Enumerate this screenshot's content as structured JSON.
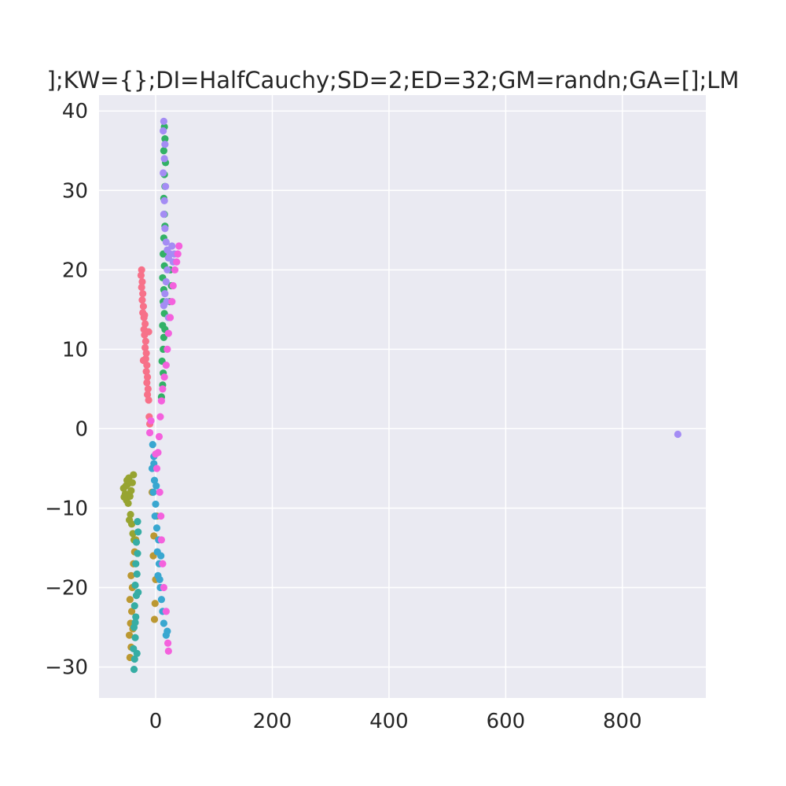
{
  "chart_data": {
    "type": "scatter",
    "title": "];KW={};DI=HalfCauchy;SD=2;ED=32;GM=randn;GA=[];LM",
    "xlabel": "",
    "ylabel": "",
    "xlim": [
      -97,
      943
    ],
    "ylim": [
      -33.9,
      42.0
    ],
    "xticks": [
      0,
      200,
      400,
      600,
      800
    ],
    "yticks": [
      -30,
      -20,
      -10,
      0,
      10,
      20,
      30,
      40
    ],
    "xtick_labels": [
      "0",
      "200",
      "400",
      "600",
      "800"
    ],
    "ytick_labels": [
      "−30",
      "−20",
      "−10",
      "0",
      "10",
      "20",
      "30",
      "40"
    ],
    "grid": true,
    "legend": "none",
    "background": "#eaeaf2",
    "series": [
      {
        "color": "#f77189",
        "points": [
          [
            -24,
            20
          ],
          [
            -25,
            19.3
          ],
          [
            -23,
            18.5
          ],
          [
            -24,
            17.8
          ],
          [
            -22,
            17
          ],
          [
            -23,
            16.2
          ],
          [
            -21,
            15.4
          ],
          [
            -22,
            14.6
          ],
          [
            -20,
            14
          ],
          [
            -18,
            13.2
          ],
          [
            -20,
            12.5
          ],
          [
            -19,
            11.8
          ],
          [
            -17,
            11
          ],
          [
            -18,
            10.2
          ],
          [
            -16,
            9.5
          ],
          [
            -17,
            8.8
          ],
          [
            -15,
            8
          ],
          [
            -16,
            7.2
          ],
          [
            -14,
            6.5
          ],
          [
            -15,
            5.8
          ],
          [
            -13,
            5
          ],
          [
            -14,
            4.3
          ],
          [
            -12,
            3.6
          ],
          [
            -11,
            1.5
          ],
          [
            -10,
            0.6
          ],
          [
            -12,
            12.2
          ],
          [
            -19,
            14.3
          ],
          [
            -21,
            8.6
          ]
        ]
      },
      {
        "color": "#bb9832",
        "points": [
          [
            -44,
            -28.8
          ],
          [
            -42,
            -27.5
          ],
          [
            -45,
            -26
          ],
          [
            -43,
            -24.5
          ],
          [
            -41,
            -23
          ],
          [
            -44,
            -21.5
          ],
          [
            -40,
            -20
          ],
          [
            -42,
            -18.5
          ],
          [
            -38,
            -17
          ],
          [
            -36,
            -15.5
          ],
          [
            -34,
            -14
          ],
          [
            -3,
            -13.5
          ],
          [
            -2,
            -24
          ],
          [
            -1,
            -22
          ],
          [
            0,
            -19
          ],
          [
            -4,
            -16
          ],
          [
            2,
            -11
          ],
          [
            -6,
            -8
          ],
          [
            -39,
            -25.2
          ]
        ]
      },
      {
        "color": "#97a431",
        "points": [
          [
            -55,
            -7.5
          ],
          [
            -52,
            -8.2
          ],
          [
            -50,
            -9
          ],
          [
            -48,
            -7
          ],
          [
            -46,
            -6.2
          ],
          [
            -44,
            -8.5
          ],
          [
            -42,
            -7.8
          ],
          [
            -40,
            -6.8
          ],
          [
            -38,
            -5.8
          ],
          [
            -54,
            -8.6
          ],
          [
            -51,
            -7.2
          ],
          [
            -47,
            -9.4
          ],
          [
            -43,
            -10.8
          ],
          [
            -41,
            -12
          ],
          [
            -39,
            -13.2
          ],
          [
            -37,
            -14
          ],
          [
            -45,
            -11.5
          ],
          [
            -49,
            -6.5
          ]
        ]
      },
      {
        "color": "#32b166",
        "points": [
          [
            15,
            38
          ],
          [
            16,
            36.5
          ],
          [
            14,
            35
          ],
          [
            17,
            33.5
          ],
          [
            15,
            32
          ],
          [
            16,
            30.5
          ],
          [
            14,
            29
          ],
          [
            15,
            27
          ],
          [
            16,
            25.5
          ],
          [
            14,
            24
          ],
          [
            13,
            22
          ],
          [
            15,
            20.5
          ],
          [
            12,
            19
          ],
          [
            14,
            17.5
          ],
          [
            13,
            16
          ],
          [
            15,
            14.5
          ],
          [
            12,
            13
          ],
          [
            14,
            11.5
          ],
          [
            13,
            10
          ],
          [
            11,
            8.5
          ],
          [
            13,
            7
          ],
          [
            12,
            5.5
          ],
          [
            10,
            4
          ],
          [
            25,
            20
          ],
          [
            27,
            18
          ],
          [
            24,
            16
          ],
          [
            16,
            12.5
          ]
        ]
      },
      {
        "color": "#36ada4",
        "points": [
          [
            -37,
            -30.3
          ],
          [
            -36,
            -29
          ],
          [
            -38,
            -27.7
          ],
          [
            -35,
            -26.3
          ],
          [
            -37,
            -25
          ],
          [
            -34,
            -23.7
          ],
          [
            -36,
            -22.3
          ],
          [
            -33,
            -21
          ],
          [
            -35,
            -19.7
          ],
          [
            -32,
            -18.3
          ],
          [
            -34,
            -17
          ],
          [
            -31,
            -15.7
          ],
          [
            -33,
            -14.3
          ],
          [
            -30,
            -13
          ],
          [
            -31,
            -11.7
          ],
          [
            -32,
            -28.3
          ],
          [
            -35,
            -24.4
          ],
          [
            -30,
            -20.6
          ]
        ]
      },
      {
        "color": "#39a7d0",
        "points": [
          [
            -5,
            -2
          ],
          [
            -3,
            -3.5
          ],
          [
            -6,
            -5
          ],
          [
            -2,
            -6.5
          ],
          [
            -4,
            -8
          ],
          [
            0,
            -9.5
          ],
          [
            -1,
            -11
          ],
          [
            2,
            -12.5
          ],
          [
            5,
            -14
          ],
          [
            3,
            -15.5
          ],
          [
            6,
            -17
          ],
          [
            4,
            -18.5
          ],
          [
            8,
            -20
          ],
          [
            10,
            -21.5
          ],
          [
            12,
            -23
          ],
          [
            14,
            -24.5
          ],
          [
            18,
            -26
          ],
          [
            20,
            -25.5
          ],
          [
            7,
            -19
          ],
          [
            9,
            -16
          ],
          [
            1,
            -7.2
          ],
          [
            -3,
            -4.4
          ]
        ]
      },
      {
        "color": "#a48cf4",
        "points": [
          [
            14,
            38.7
          ],
          [
            13,
            37.5
          ],
          [
            16,
            35.8
          ],
          [
            15,
            34
          ],
          [
            13,
            32.2
          ],
          [
            17,
            30.5
          ],
          [
            15,
            28.7
          ],
          [
            14,
            27
          ],
          [
            16,
            25.2
          ],
          [
            18,
            23.5
          ],
          [
            20,
            22.5
          ],
          [
            22,
            21.5
          ],
          [
            25,
            22
          ],
          [
            28,
            23
          ],
          [
            30,
            21
          ],
          [
            32,
            22
          ],
          [
            20,
            20
          ],
          [
            18,
            18.5
          ],
          [
            16,
            17
          ],
          [
            14,
            15.5
          ],
          [
            19,
            16
          ],
          [
            22,
            14
          ],
          [
            895,
            -0.7
          ]
        ]
      },
      {
        "color": "#f461dd",
        "points": [
          [
            40,
            23
          ],
          [
            38,
            22
          ],
          [
            36,
            21
          ],
          [
            33,
            20
          ],
          [
            30,
            18
          ],
          [
            28,
            16
          ],
          [
            25,
            14
          ],
          [
            22,
            12
          ],
          [
            20,
            10
          ],
          [
            18,
            8
          ],
          [
            15,
            6.5
          ],
          [
            12,
            5
          ],
          [
            10,
            3.5
          ],
          [
            8,
            1.5
          ],
          [
            6,
            -1
          ],
          [
            4,
            -3
          ],
          [
            2,
            -5
          ],
          [
            0,
            -3.2
          ],
          [
            7,
            -8
          ],
          [
            9,
            -11
          ],
          [
            10,
            -14
          ],
          [
            12,
            -17
          ],
          [
            14,
            -20
          ],
          [
            18,
            -23
          ],
          [
            21,
            -27
          ],
          [
            22,
            -28
          ],
          [
            -10,
            -0.5
          ],
          [
            -8,
            1
          ]
        ]
      }
    ]
  }
}
